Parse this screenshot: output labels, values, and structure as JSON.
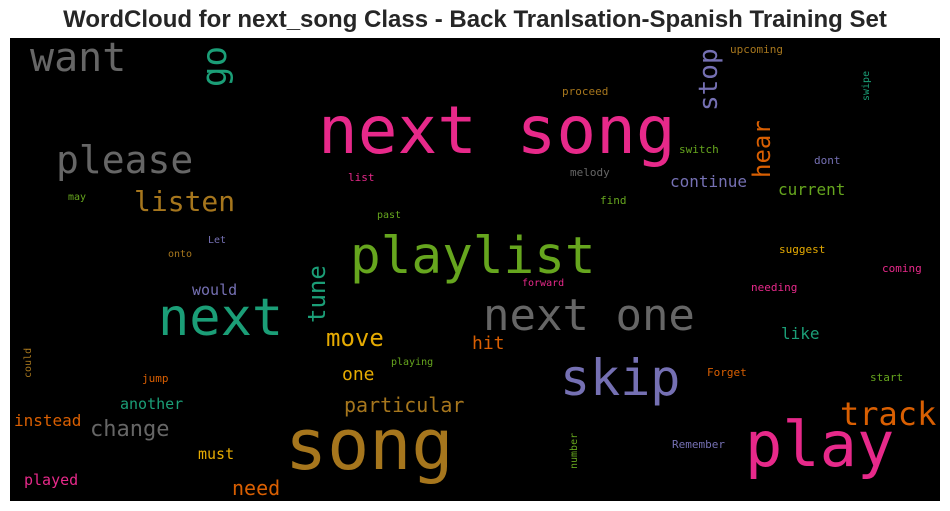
{
  "chart_title": "WordCloud for next_song Class - Back Tranlsation-Spanish Training Set",
  "palette": {
    "gray": "#666666",
    "pink": "#e7298a",
    "teal": "#1b9e77",
    "green": "#66a61e",
    "ochre": "#a6761d",
    "orange": "#d95f02",
    "purple": "#7570b3",
    "gold": "#e6ab02"
  },
  "chart_data": {
    "type": "wordcloud",
    "background": "#000000",
    "words": [
      {
        "text": "next song",
        "color": "pink",
        "weight": 66
      },
      {
        "text": "song",
        "color": "ochre",
        "weight": 70
      },
      {
        "text": "playlist",
        "color": "green",
        "weight": 51
      },
      {
        "text": "play",
        "color": "pink",
        "weight": 62
      },
      {
        "text": "next",
        "color": "teal",
        "weight": 52
      },
      {
        "text": "next one",
        "color": "gray",
        "weight": 44
      },
      {
        "text": "skip",
        "color": "purple",
        "weight": 50
      },
      {
        "text": "want",
        "color": "gray",
        "weight": 40
      },
      {
        "text": "please",
        "color": "gray",
        "weight": 38
      },
      {
        "text": "go",
        "color": "teal",
        "weight": 34
      },
      {
        "text": "stop",
        "color": "purple",
        "weight": 26
      },
      {
        "text": "listen",
        "color": "ochre",
        "weight": 28
      },
      {
        "text": "hear",
        "color": "orange",
        "weight": 24
      },
      {
        "text": "track",
        "color": "orange",
        "weight": 32
      },
      {
        "text": "tune",
        "color": "teal",
        "weight": 24
      },
      {
        "text": "move",
        "color": "gold",
        "weight": 24
      },
      {
        "text": "change",
        "color": "gray",
        "weight": 22
      },
      {
        "text": "particular",
        "color": "ochre",
        "weight": 20
      },
      {
        "text": "need",
        "color": "orange",
        "weight": 20
      },
      {
        "text": "continue",
        "color": "purple",
        "weight": 16
      },
      {
        "text": "current",
        "color": "green",
        "weight": 16
      },
      {
        "text": "hit",
        "color": "orange",
        "weight": 18
      },
      {
        "text": "one",
        "color": "gold",
        "weight": 18
      },
      {
        "text": "like",
        "color": "teal",
        "weight": 16
      },
      {
        "text": "instead",
        "color": "orange",
        "weight": 16
      },
      {
        "text": "another",
        "color": "teal",
        "weight": 15
      },
      {
        "text": "must",
        "color": "gold",
        "weight": 15
      },
      {
        "text": "played",
        "color": "pink",
        "weight": 15
      },
      {
        "text": "would",
        "color": "purple",
        "weight": 15
      },
      {
        "text": "upcoming",
        "color": "ochre",
        "weight": 11
      },
      {
        "text": "proceed",
        "color": "ochre",
        "weight": 11
      },
      {
        "text": "switch",
        "color": "green",
        "weight": 11
      },
      {
        "text": "swipe",
        "color": "teal",
        "weight": 10
      },
      {
        "text": "dont",
        "color": "purple",
        "weight": 11
      },
      {
        "text": "melody",
        "color": "gray",
        "weight": 11
      },
      {
        "text": "list",
        "color": "pink",
        "weight": 11
      },
      {
        "text": "find",
        "color": "green",
        "weight": 11
      },
      {
        "text": "may",
        "color": "green",
        "weight": 10
      },
      {
        "text": "past",
        "color": "green",
        "weight": 10
      },
      {
        "text": "Let",
        "color": "purple",
        "weight": 10
      },
      {
        "text": "onto",
        "color": "ochre",
        "weight": 10
      },
      {
        "text": "suggest",
        "color": "gold",
        "weight": 11
      },
      {
        "text": "coming",
        "color": "pink",
        "weight": 11
      },
      {
        "text": "forward",
        "color": "pink",
        "weight": 10
      },
      {
        "text": "needing",
        "color": "pink",
        "weight": 11
      },
      {
        "text": "could",
        "color": "ochre",
        "weight": 10
      },
      {
        "text": "jump",
        "color": "orange",
        "weight": 11
      },
      {
        "text": "playing",
        "color": "green",
        "weight": 10
      },
      {
        "text": "Forget",
        "color": "orange",
        "weight": 11
      },
      {
        "text": "start",
        "color": "green",
        "weight": 11
      },
      {
        "text": "number",
        "color": "green",
        "weight": 10
      },
      {
        "text": "Remember",
        "color": "purple",
        "weight": 11
      }
    ]
  }
}
